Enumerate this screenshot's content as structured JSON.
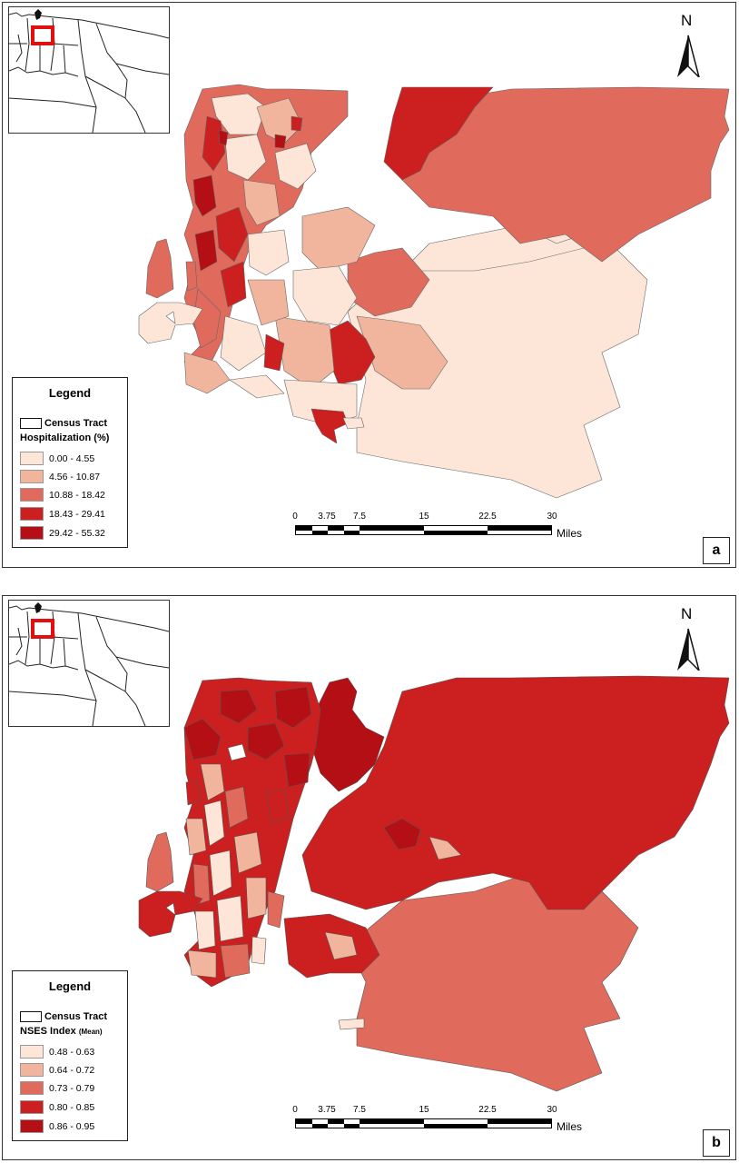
{
  "panel_a": {
    "label": "a",
    "north": "N",
    "legend": {
      "title": "Legend",
      "tract_label": "Census Tract",
      "variable": "Hospitalization (%)",
      "variable_note": "",
      "classes": [
        {
          "range": "0.00 - 4.55",
          "color": "#fde6d7"
        },
        {
          "range": "4.56 - 10.87",
          "color": "#f1b59e"
        },
        {
          "range": "10.88 - 18.42",
          "color": "#e06b5c"
        },
        {
          "range": "18.43 - 29.41",
          "color": "#cc1f1f"
        },
        {
          "range": "29.42 - 55.32",
          "color": "#b30f14"
        }
      ]
    },
    "scale": {
      "ticks": [
        "0",
        "3.75",
        "7.5",
        "15",
        "22.5",
        "30"
      ],
      "unit": "Miles"
    }
  },
  "panel_b": {
    "label": "b",
    "north": "N",
    "legend": {
      "title": "Legend",
      "tract_label": "Census Tract",
      "variable": "NSES Index",
      "variable_note": "(Mean)",
      "classes": [
        {
          "range": "0.48 - 0.63",
          "color": "#fde6d7"
        },
        {
          "range": "0.64 - 0.72",
          "color": "#f1b59e"
        },
        {
          "range": "0.73 - 0.79",
          "color": "#e06b5c"
        },
        {
          "range": "0.80 - 0.85",
          "color": "#cc1f1f"
        },
        {
          "range": "0.86 - 0.95",
          "color": "#b30f14"
        }
      ]
    },
    "scale": {
      "ticks": [
        "0",
        "3.75",
        "7.5",
        "15",
        "22.5",
        "30"
      ],
      "unit": "Miles"
    }
  }
}
